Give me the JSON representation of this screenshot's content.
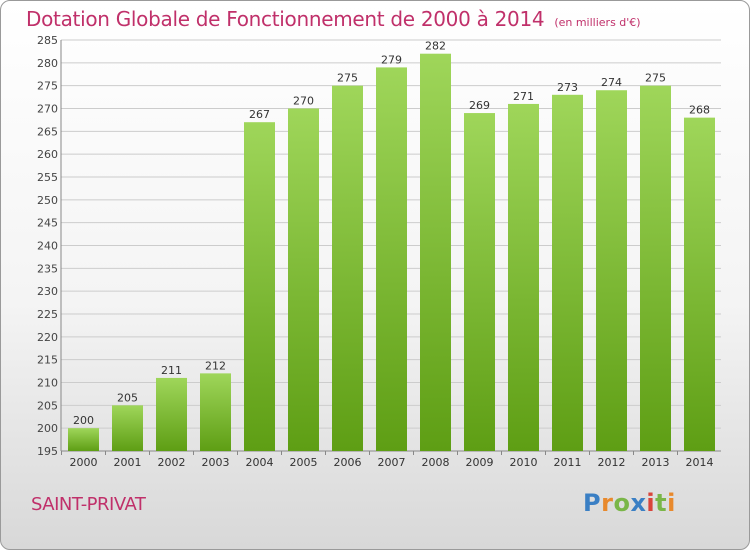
{
  "title": "Dotation Globale de Fonctionnement de 2000 à 2014",
  "unit_note": "(en milliers d'€)",
  "commune": "SAINT-PRIVAT",
  "brand": {
    "p": "P",
    "r": "r",
    "o": "o",
    "x": "x",
    "i1": "i",
    "t": "t",
    "i2": "i"
  },
  "colors": {
    "title": "#c0306a",
    "bar_light": "#9fd65a",
    "bar_dark": "#5e9e14",
    "grid": "#cccccc"
  },
  "chart_data": {
    "type": "bar",
    "categories": [
      "2000",
      "2001",
      "2002",
      "2003",
      "2004",
      "2005",
      "2006",
      "2007",
      "2008",
      "2009",
      "2010",
      "2011",
      "2012",
      "2013",
      "2014"
    ],
    "values": [
      200,
      205,
      211,
      212,
      267,
      270,
      275,
      279,
      282,
      269,
      271,
      273,
      274,
      275,
      268
    ],
    "ylim": [
      195,
      285
    ],
    "yticks": [
      195,
      200,
      205,
      210,
      215,
      220,
      225,
      230,
      235,
      240,
      245,
      250,
      255,
      260,
      265,
      270,
      275,
      280,
      285
    ],
    "grid": true,
    "data_labels": true
  }
}
